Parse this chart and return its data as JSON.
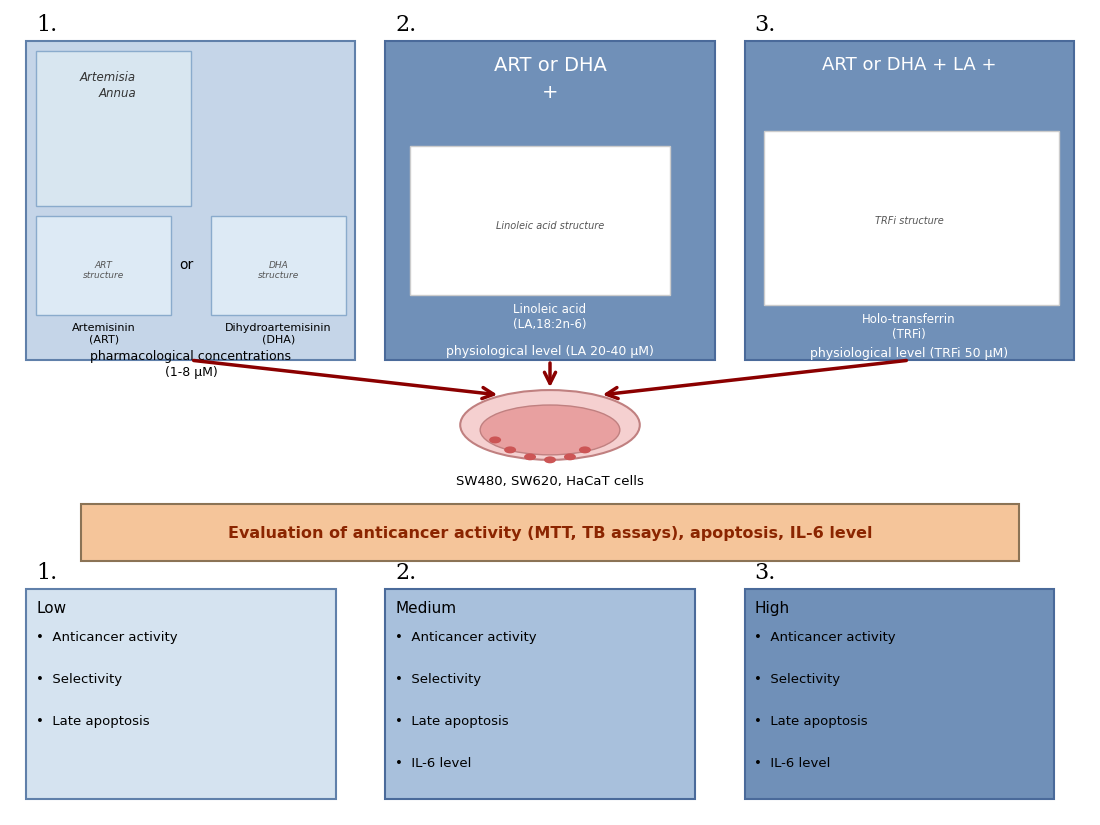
{
  "fig_width": 11.0,
  "fig_height": 8.25,
  "bg_color": "#ffffff",
  "top_box_bg_light": "#c5d5e8",
  "top_box_bg_dark": "#7090b8",
  "bottom_box_bg_light": "#c5d5e8",
  "bottom_box_bg_dark": "#7090b8",
  "eval_box_bg": "#f5c59a",
  "eval_box_border": "#8b7355",
  "arrow_color": "#8b0000",
  "number_labels": [
    "1.",
    "2.",
    "3."
  ],
  "top_titles": [
    "ART or DHA",
    "ART or DHA + LA +"
  ],
  "top_subtexts": [
    "pharmacological concentrations\n(1-8 μM)",
    "physiological level (LA 20-40 μM)",
    "physiological level (TRFi 50 μM)"
  ],
  "box1_inner_title": "Artemisia\nAnnua",
  "box1_chem1": "Artemisinin\n(ART)",
  "box1_chem2": "Dihydroartemisinin\n(DHA)",
  "box2_title": "ART or DHA\n+",
  "box2_chem": "Linoleic acid\n(LA,18:2n-6)",
  "box3_title": "ART or DHA + LA +",
  "box3_chem": "Holo-transferrin\n(TRFi)",
  "cells_label": "SW480, SW620, HaCaT cells",
  "eval_text": "Evaluation of anticancer activity (MTT, TB assays), apoptosis, IL-6 level",
  "bottom_labels": [
    "Low",
    "Medium",
    "High"
  ],
  "bottom_bullets_1": [
    "•  Anticancer activity",
    "•  Selectivity",
    "•  Late apoptosis"
  ],
  "bottom_bullets_2": [
    "•  Anticancer activity",
    "•  Selectivity",
    "•  Late apoptosis",
    "•  IL-6 level"
  ],
  "bottom_bullets_3": [
    "•  Anticancer activity",
    "•  Selectivity",
    "•  Late apoptosis",
    "•  IL-6 level"
  ]
}
